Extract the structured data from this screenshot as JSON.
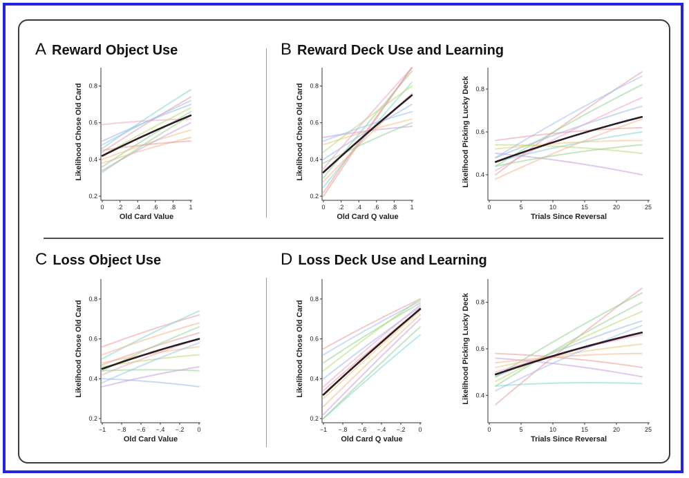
{
  "colors": {
    "frame": "#2323e6",
    "mean_line": "#2b1a22",
    "subject_palette": [
      "#e89a9a",
      "#8fd18f",
      "#9ab8e8",
      "#f2c27a",
      "#c99ae0",
      "#7fd6d0",
      "#f0a0c8",
      "#b8d86a",
      "#f5b48a",
      "#9fc0f0"
    ]
  },
  "panels": [
    {
      "id": "A",
      "letter": "A",
      "title": "Reward Object Use"
    },
    {
      "id": "B",
      "letter": "B",
      "title": "Reward Deck Use and Learning"
    },
    {
      "id": "C",
      "letter": "C",
      "title": "Loss Object Use"
    },
    {
      "id": "D",
      "letter": "D",
      "title": "Loss Deck Use and Learning"
    }
  ],
  "chart_data": [
    {
      "panel": "A",
      "type": "line",
      "xlabel": "Old Card Value",
      "ylabel": "Likelihood Chose Old Card",
      "xlim": [
        0,
        1
      ],
      "ylim": [
        0.2,
        0.9
      ],
      "xticks": [
        0,
        0.2,
        0.4,
        0.6,
        0.8,
        1
      ],
      "xtick_labels": [
        "0",
        ".2",
        ".4",
        ".6",
        ".8",
        "1"
      ],
      "yticks": [
        0.2,
        0.4,
        0.6,
        0.8
      ],
      "ytick_labels": [
        "0.2",
        "0.4",
        "0.6",
        "0.8"
      ],
      "mean_line": {
        "x": [
          0,
          1
        ],
        "y": [
          0.42,
          0.64
        ]
      },
      "subject_lines": [
        [
          0.44,
          0.74
        ],
        [
          0.36,
          0.66
        ],
        [
          0.5,
          0.7
        ],
        [
          0.4,
          0.56
        ],
        [
          0.34,
          0.6
        ],
        [
          0.46,
          0.78
        ],
        [
          0.59,
          0.62
        ],
        [
          0.42,
          0.68
        ],
        [
          0.38,
          0.52
        ],
        [
          0.48,
          0.72
        ],
        [
          0.45,
          0.5
        ],
        [
          0.33,
          0.64
        ]
      ]
    },
    {
      "panel": "B-left",
      "type": "line",
      "xlabel": "Old Card Q value",
      "ylabel": "Likelihood Chose Old Card",
      "xlim": [
        0,
        1
      ],
      "ylim": [
        0.2,
        0.9
      ],
      "xticks": [
        0,
        0.2,
        0.4,
        0.6,
        0.8,
        1
      ],
      "xtick_labels": [
        "0",
        ".2",
        ".4",
        ".6",
        ".8",
        "1"
      ],
      "yticks": [
        0.2,
        0.4,
        0.6,
        0.8
      ],
      "ytick_labels": [
        "0.2",
        "0.4",
        "0.6",
        "0.8"
      ],
      "mean_line": {
        "x": [
          0,
          1
        ],
        "y": [
          0.33,
          0.75
        ]
      },
      "subject_lines": [
        [
          0.22,
          0.95
        ],
        [
          0.3,
          0.88
        ],
        [
          0.4,
          0.7
        ],
        [
          0.48,
          0.62
        ],
        [
          0.52,
          0.58
        ],
        [
          0.25,
          0.82
        ],
        [
          0.35,
          0.92
        ],
        [
          0.44,
          0.8
        ],
        [
          0.28,
          0.76
        ],
        [
          0.5,
          0.66
        ],
        [
          0.2,
          0.9
        ],
        [
          0.38,
          0.6
        ]
      ]
    },
    {
      "panel": "B-right",
      "type": "line",
      "xlabel": "Trials Since Reversal",
      "ylabel": "Likelihood Picking Lucky Deck",
      "xlim": [
        0,
        25
      ],
      "ylim": [
        0.3,
        0.9
      ],
      "xticks": [
        0,
        5,
        10,
        15,
        20,
        25
      ],
      "xtick_labels": [
        "0",
        "5",
        "10",
        "15",
        "20",
        "25"
      ],
      "yticks": [
        0.4,
        0.6,
        0.8
      ],
      "ytick_labels": [
        "0.4",
        "0.6",
        "0.8"
      ],
      "mean_line": {
        "x": [
          1,
          24
        ],
        "y": [
          0.46,
          0.67
        ]
      },
      "subject_lines": [
        [
          0.4,
          0.88
        ],
        [
          0.44,
          0.82
        ],
        [
          0.48,
          0.72
        ],
        [
          0.52,
          0.56
        ],
        [
          0.5,
          0.4
        ],
        [
          0.46,
          0.6
        ],
        [
          0.42,
          0.76
        ],
        [
          0.54,
          0.5
        ],
        [
          0.38,
          0.66
        ],
        [
          0.48,
          0.86
        ],
        [
          0.56,
          0.62
        ],
        [
          0.44,
          0.54
        ]
      ]
    },
    {
      "panel": "C",
      "type": "line",
      "xlabel": "Old Card Value",
      "ylabel": "Likelihood Chose Old Card",
      "xlim": [
        -1,
        0
      ],
      "ylim": [
        0.2,
        0.9
      ],
      "xticks": [
        -1,
        -0.8,
        -0.6,
        -0.4,
        -0.2,
        0
      ],
      "xtick_labels": [
        "−1",
        "−.8",
        "−.6",
        "−.4",
        "−.2",
        "0"
      ],
      "yticks": [
        0.2,
        0.4,
        0.6,
        0.8
      ],
      "ytick_labels": [
        "0.2",
        "0.4",
        "0.6",
        "0.8"
      ],
      "mean_line": {
        "x": [
          -1,
          0
        ],
        "y": [
          0.45,
          0.6
        ]
      },
      "subject_lines": [
        [
          0.56,
          0.72
        ],
        [
          0.44,
          0.66
        ],
        [
          0.4,
          0.36
        ],
        [
          0.48,
          0.56
        ],
        [
          0.36,
          0.46
        ],
        [
          0.5,
          0.74
        ],
        [
          0.42,
          0.6
        ],
        [
          0.46,
          0.52
        ],
        [
          0.52,
          0.68
        ],
        [
          0.38,
          0.58
        ],
        [
          0.47,
          0.63
        ],
        [
          0.44,
          0.44
        ]
      ]
    },
    {
      "panel": "D-left",
      "type": "line",
      "xlabel": "Old Card Q value",
      "ylabel": "Likelihood Chose Old Card",
      "xlim": [
        -1,
        0
      ],
      "ylim": [
        0.2,
        0.9
      ],
      "xticks": [
        -1,
        -0.8,
        -0.6,
        -0.4,
        -0.2,
        0
      ],
      "xtick_labels": [
        "−1",
        "−.8",
        "−.6",
        "−.4",
        "−.2",
        "0"
      ],
      "yticks": [
        0.2,
        0.4,
        0.6,
        0.8
      ],
      "ytick_labels": [
        "0.2",
        "0.4",
        "0.6",
        "0.8"
      ],
      "mean_line": {
        "x": [
          -1,
          0
        ],
        "y": [
          0.32,
          0.75
        ]
      },
      "subject_lines": [
        [
          0.55,
          0.8
        ],
        [
          0.48,
          0.78
        ],
        [
          0.4,
          0.76
        ],
        [
          0.3,
          0.74
        ],
        [
          0.22,
          0.7
        ],
        [
          0.18,
          0.62
        ],
        [
          0.36,
          0.77
        ],
        [
          0.44,
          0.8
        ],
        [
          0.26,
          0.72
        ],
        [
          0.52,
          0.79
        ],
        [
          0.34,
          0.75
        ],
        [
          0.2,
          0.66
        ]
      ]
    },
    {
      "panel": "D-right",
      "type": "line",
      "xlabel": "Trials Since Reversal",
      "ylabel": "Likelihood Picking Lucky Deck",
      "xlim": [
        0,
        25
      ],
      "ylim": [
        0.3,
        0.9
      ],
      "xticks": [
        0,
        5,
        10,
        15,
        20,
        25
      ],
      "xtick_labels": [
        "0",
        "5",
        "10",
        "15",
        "20",
        "25"
      ],
      "yticks": [
        0.4,
        0.6,
        0.8
      ],
      "ytick_labels": [
        "0.4",
        "0.6",
        "0.8"
      ],
      "mean_line": {
        "x": [
          1,
          24
        ],
        "y": [
          0.49,
          0.67
        ]
      },
      "subject_lines": [
        [
          0.36,
          0.86
        ],
        [
          0.44,
          0.8
        ],
        [
          0.48,
          0.72
        ],
        [
          0.52,
          0.62
        ],
        [
          0.56,
          0.48
        ],
        [
          0.44,
          0.45
        ],
        [
          0.5,
          0.66
        ],
        [
          0.46,
          0.76
        ],
        [
          0.54,
          0.58
        ],
        [
          0.42,
          0.7
        ],
        [
          0.58,
          0.52
        ],
        [
          0.48,
          0.84
        ]
      ]
    }
  ]
}
